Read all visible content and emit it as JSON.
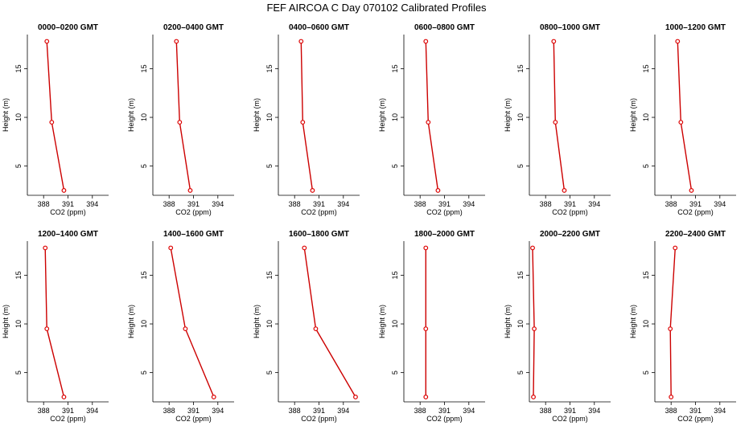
{
  "chart_data": {
    "type": "line",
    "title": "FEF AIRCOA C  Day 070102  Calibrated Profiles",
    "xlabel": "CO2 (ppm)",
    "ylabel": "Height (m)",
    "xlim": [
      386,
      396
    ],
    "xticks": [
      388,
      391,
      394
    ],
    "ylim": [
      2,
      18.5
    ],
    "yticks": [
      5,
      10,
      15
    ],
    "heights": [
      2.5,
      9.5,
      17.8
    ],
    "grid": false,
    "panels": [
      {
        "title": "0000–0200 GMT",
        "co2": [
          390.5,
          389.0,
          388.4
        ]
      },
      {
        "title": "0200–0400 GMT",
        "co2": [
          390.6,
          389.3,
          388.9
        ]
      },
      {
        "title": "0400–0600 GMT",
        "co2": [
          390.2,
          389.0,
          388.8
        ]
      },
      {
        "title": "0600–0800 GMT",
        "co2": [
          390.2,
          389.0,
          388.7
        ]
      },
      {
        "title": "0800–1000 GMT",
        "co2": [
          390.3,
          389.2,
          389.0
        ]
      },
      {
        "title": "1000–1200 GMT",
        "co2": [
          390.5,
          389.2,
          388.8
        ]
      },
      {
        "title": "1200–1400 GMT",
        "co2": [
          390.5,
          388.4,
          388.2
        ]
      },
      {
        "title": "1400–1600 GMT",
        "co2": [
          393.5,
          390.0,
          388.2
        ]
      },
      {
        "title": "1600–1800 GMT",
        "co2": [
          395.5,
          390.6,
          389.2
        ]
      },
      {
        "title": "1800–2000 GMT",
        "co2": [
          388.7,
          388.7,
          388.7
        ]
      },
      {
        "title": "2000–2200 GMT",
        "co2": [
          386.5,
          386.6,
          386.4
        ]
      },
      {
        "title": "2200–2400 GMT",
        "co2": [
          388.0,
          387.9,
          388.5
        ]
      }
    ],
    "line_color": "#cc0000",
    "marker_color": "#dd0000"
  }
}
